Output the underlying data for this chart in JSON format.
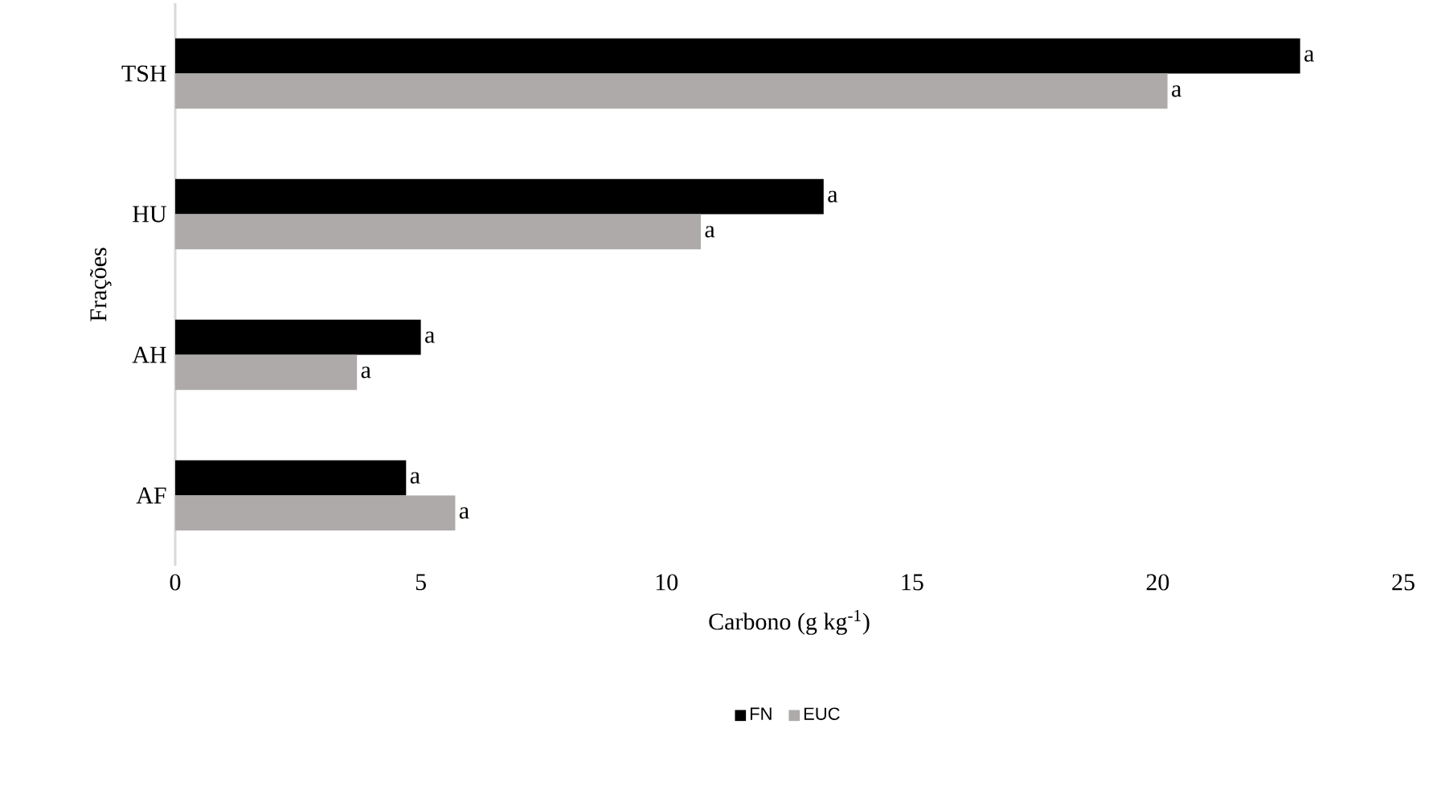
{
  "chart_data": {
    "type": "bar",
    "orientation": "horizontal",
    "ylabel": "Frações",
    "xlabel": "Carbono (g kg$^{-1}$)",
    "categories": [
      "TSH",
      "HU",
      "AH",
      "AF"
    ],
    "series": [
      {
        "name": "FN",
        "color": "#000000",
        "values": [
          22.9,
          13.2,
          5.0,
          4.7
        ],
        "value_labels": [
          "a",
          "a",
          "a",
          "a"
        ]
      },
      {
        "name": "EUC",
        "color": "#aeaaaa",
        "values": [
          20.2,
          10.7,
          3.7,
          5.7
        ],
        "value_labels": [
          "a",
          "a",
          "a",
          "a"
        ]
      }
    ],
    "xlim": [
      0,
      25
    ],
    "xticks": [
      0,
      5,
      10,
      15,
      20,
      25
    ],
    "legend": "bottom",
    "grid": false
  }
}
